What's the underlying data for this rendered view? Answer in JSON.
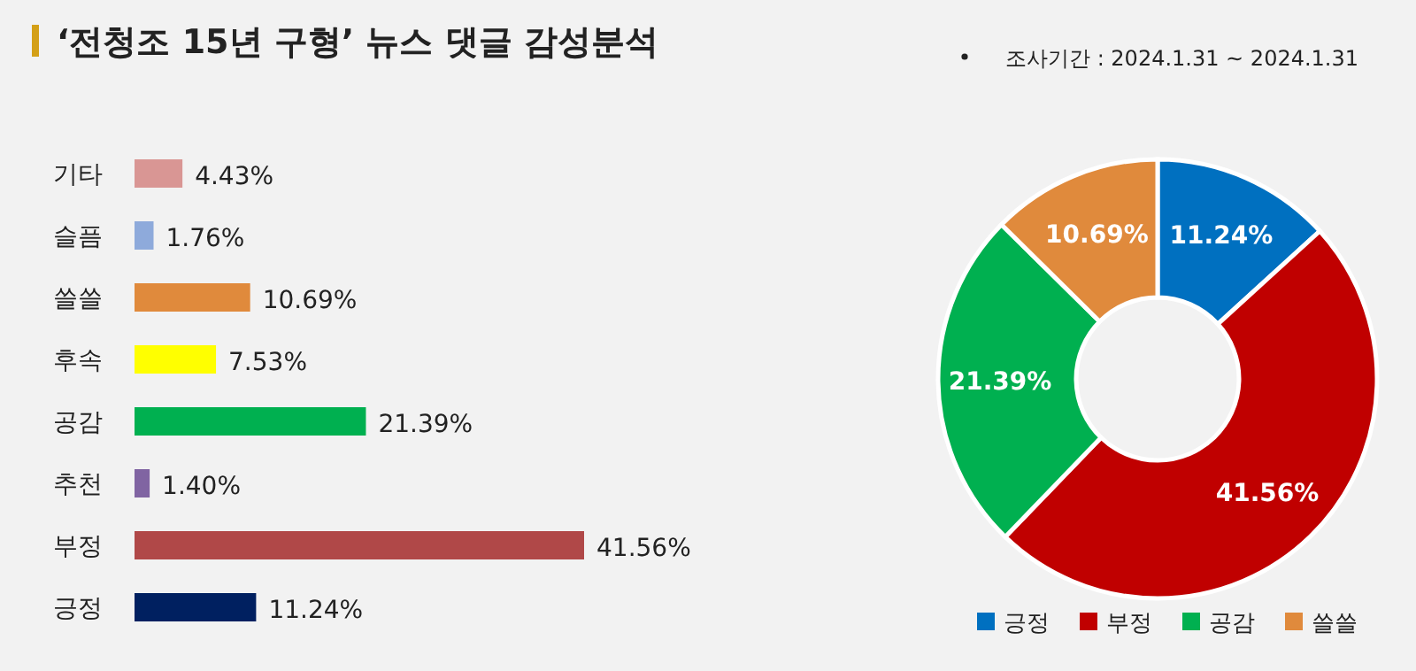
{
  "chart_data": [
    {
      "type": "bar",
      "orientation": "horizontal",
      "title": "‘전청조 15년 구형’ 뉴스 댓글 감성분석",
      "categories": [
        "기타",
        "슬픔",
        "쓸쓸",
        "후속",
        "공감",
        "추천",
        "부정",
        "긍정"
      ],
      "values": [
        4.43,
        1.76,
        10.69,
        7.53,
        21.39,
        1.4,
        41.56,
        11.24
      ],
      "colors": [
        "#d99694",
        "#8eaadb",
        "#e08a3c",
        "#ffff00",
        "#00b050",
        "#8064a2",
        "#b04848",
        "#002060"
      ],
      "value_labels": [
        "4.43%",
        "1.76%",
        "10.69%",
        "7.53%",
        "21.39%",
        "1.40%",
        "41.56%",
        "11.24%"
      ]
    },
    {
      "type": "donut",
      "annotations": [
        "조사기간 : 2024.1.31 ~ 2024.1.31"
      ],
      "categories": [
        "긍정",
        "부정",
        "공감",
        "쓸쓸"
      ],
      "values": [
        11.24,
        41.56,
        21.39,
        10.69
      ],
      "colors": [
        "#0070c0",
        "#c00000",
        "#00b050",
        "#e08a3c"
      ],
      "value_labels": [
        "11.24%",
        "41.56%",
        "21.39%",
        "10.69%"
      ],
      "legend": "bottom"
    }
  ]
}
